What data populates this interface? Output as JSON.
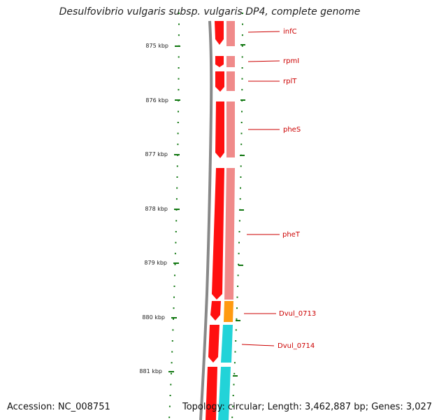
{
  "title": "Desulfovibrio vulgaris subsp. vulgaris DP4, complete genome",
  "footer": {
    "accession": "Accession: NC_008751",
    "summary": "Topology: circular; Length: 3,462,887 bp; Genes: 3,027"
  },
  "colors": {
    "cds_forward": "#ee0000",
    "cds_arrow": "#ff1010",
    "gene_track": "#f08a8a",
    "highlight_orange": "#ff9a10",
    "highlight_cyan": "#22d3d8",
    "backbone": "#888888",
    "ticks": "#117711",
    "label": "#cc0000"
  },
  "ticks": [
    "875 kbp",
    "876 kbp",
    "877 kbp",
    "878 kbp",
    "879 kbp",
    "880 kbp",
    "881 kbp"
  ],
  "genes": [
    {
      "name": "infC"
    },
    {
      "name": "rpmI"
    },
    {
      "name": "rplT"
    },
    {
      "name": "pheS"
    },
    {
      "name": "pheT"
    },
    {
      "name": "Dvul_0713"
    },
    {
      "name": "Dvul_0714"
    }
  ]
}
